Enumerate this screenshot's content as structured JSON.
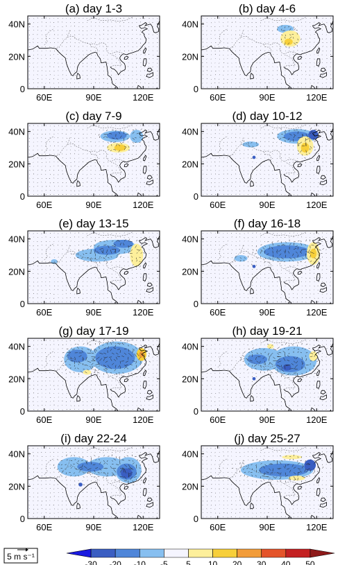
{
  "chart_data": {
    "type": "heatmap",
    "panels": [
      {
        "title": "(a) day 1-3",
        "blobs": []
      },
      {
        "title": "(b) day 4-6",
        "blobs": [
          {
            "lon": 101,
            "lat": 37,
            "rx": 5,
            "ry": 2.5,
            "v": -7
          },
          {
            "lon": 104,
            "lat": 31,
            "rx": 6,
            "ry": 5,
            "v": 9
          },
          {
            "lon": 103,
            "lat": 29,
            "rx": 2.5,
            "ry": 2,
            "v": 14
          }
        ]
      },
      {
        "title": "(c) day 7-9",
        "blobs": [
          {
            "lon": 103,
            "lat": 37,
            "rx": 9,
            "ry": 3.5,
            "v": -7
          },
          {
            "lon": 104,
            "lat": 37.5,
            "rx": 6,
            "ry": 2.5,
            "v": -15
          },
          {
            "lon": 116,
            "lat": 37,
            "rx": 4,
            "ry": 4,
            "v": -7
          },
          {
            "lon": 105,
            "lat": 30,
            "rx": 7,
            "ry": 3,
            "v": 8
          },
          {
            "lon": 106,
            "lat": 30,
            "rx": 3.5,
            "ry": 2,
            "v": 16
          }
        ]
      },
      {
        "title": "(d) day 10-12",
        "blobs": [
          {
            "lon": 108,
            "lat": 37,
            "rx": 12,
            "ry": 4.5,
            "v": -7
          },
          {
            "lon": 108,
            "lat": 37,
            "rx": 8,
            "ry": 3,
            "v": -15
          },
          {
            "lon": 118,
            "lat": 38,
            "rx": 3,
            "ry": 3,
            "v": -22
          },
          {
            "lon": 80,
            "lat": 32,
            "rx": 5,
            "ry": 1.8,
            "v": -7
          },
          {
            "lon": 113,
            "lat": 31,
            "rx": 5,
            "ry": 6,
            "v": 8
          },
          {
            "lon": 113,
            "lat": 30,
            "rx": 2.5,
            "ry": 3,
            "v": 16
          },
          {
            "lon": 82,
            "lat": 24,
            "rx": 1,
            "ry": 1,
            "v": -25
          }
        ]
      },
      {
        "title": "(e) day 13-15",
        "blobs": [
          {
            "lon": 92,
            "lat": 30,
            "rx": 13,
            "ry": 4,
            "v": -7
          },
          {
            "lon": 103,
            "lat": 35,
            "rx": 13,
            "ry": 4.5,
            "v": -8
          },
          {
            "lon": 98,
            "lat": 33,
            "rx": 8,
            "ry": 2.8,
            "v": -15
          },
          {
            "lon": 108,
            "lat": 37,
            "rx": 6,
            "ry": 2.5,
            "v": -15
          },
          {
            "lon": 116,
            "lat": 30,
            "rx": 4,
            "ry": 7,
            "v": 8
          },
          {
            "lon": 66,
            "lat": 26,
            "rx": 2,
            "ry": 1.5,
            "v": -7
          }
        ]
      },
      {
        "title": "(f) day 16-18",
        "blobs": [
          {
            "lon": 102,
            "lat": 32,
            "rx": 18,
            "ry": 6,
            "v": -7
          },
          {
            "lon": 102,
            "lat": 32,
            "rx": 14,
            "ry": 4,
            "v": -15
          },
          {
            "lon": 74,
            "lat": 28,
            "rx": 4,
            "ry": 2,
            "v": -7
          },
          {
            "lon": 118,
            "lat": 31,
            "rx": 4,
            "ry": 7,
            "v": 8
          },
          {
            "lon": 118,
            "lat": 31,
            "rx": 2,
            "ry": 3,
            "v": 15
          },
          {
            "lon": 82,
            "lat": 23,
            "rx": 1,
            "ry": 1,
            "v": -25
          }
        ]
      },
      {
        "title": "(g) day 17-19",
        "blobs": [
          {
            "lon": 82,
            "lat": 32,
            "rx": 10,
            "ry": 8,
            "v": -7
          },
          {
            "lon": 104,
            "lat": 33,
            "rx": 16,
            "ry": 10,
            "v": -8
          },
          {
            "lon": 103,
            "lat": 33,
            "rx": 12,
            "ry": 7,
            "v": -15
          },
          {
            "lon": 80,
            "lat": 34,
            "rx": 6,
            "ry": 4,
            "v": -15
          },
          {
            "lon": 119,
            "lat": 35,
            "rx": 3,
            "ry": 4,
            "v": 14
          },
          {
            "lon": 119,
            "lat": 35,
            "rx": 1.5,
            "ry": 2,
            "v": 25
          },
          {
            "lon": 86,
            "lat": 24,
            "rx": 2.5,
            "ry": 1.5,
            "v": 8
          }
        ]
      },
      {
        "title": "(h) day 19-21",
        "blobs": [
          {
            "lon": 88,
            "lat": 32,
            "rx": 12,
            "ry": 7,
            "v": -7
          },
          {
            "lon": 106,
            "lat": 31,
            "rx": 14,
            "ry": 9,
            "v": -8
          },
          {
            "lon": 104,
            "lat": 29,
            "rx": 9,
            "ry": 5,
            "v": -15
          },
          {
            "lon": 102,
            "lat": 27,
            "rx": 2.5,
            "ry": 2,
            "v": -24
          },
          {
            "lon": 84,
            "lat": 32,
            "rx": 6,
            "ry": 3,
            "v": -15
          },
          {
            "lon": 118,
            "lat": 34,
            "rx": 2.5,
            "ry": 3,
            "v": 8
          },
          {
            "lon": 92,
            "lat": 40,
            "rx": 2,
            "ry": 1.5,
            "v": 8
          },
          {
            "lon": 82,
            "lat": 20,
            "rx": 1,
            "ry": 1,
            "v": -25
          }
        ]
      },
      {
        "title": "(i) day 22-24",
        "blobs": [
          {
            "lon": 78,
            "lat": 32,
            "rx": 10,
            "ry": 6,
            "v": -7
          },
          {
            "lon": 98,
            "lat": 32,
            "rx": 12,
            "ry": 6,
            "v": -8
          },
          {
            "lon": 111,
            "lat": 30,
            "rx": 8,
            "ry": 8,
            "v": -8
          },
          {
            "lon": 88,
            "lat": 32,
            "rx": 8,
            "ry": 3,
            "v": -15
          },
          {
            "lon": 110,
            "lat": 29,
            "rx": 6,
            "ry": 5,
            "v": -15
          },
          {
            "lon": 110,
            "lat": 28,
            "rx": 3.5,
            "ry": 3,
            "v": -24
          },
          {
            "lon": 82,
            "lat": 21,
            "rx": 1.2,
            "ry": 1.2,
            "v": -25
          }
        ]
      },
      {
        "title": "(j) day 25-27",
        "blobs": [
          {
            "lon": 96,
            "lat": 30,
            "rx": 22,
            "ry": 6,
            "v": -7
          },
          {
            "lon": 100,
            "lat": 30,
            "rx": 15,
            "ry": 4,
            "v": -15
          },
          {
            "lon": 116,
            "lat": 33,
            "rx": 3.5,
            "ry": 3.5,
            "v": -24
          },
          {
            "lon": 108,
            "lat": 25,
            "rx": 5,
            "ry": 1.5,
            "v": 8
          },
          {
            "lon": 105,
            "lat": 38,
            "rx": 6,
            "ry": 1.3,
            "v": 8
          }
        ]
      }
    ],
    "x_ticks": [
      {
        "v": 60,
        "label": "60E"
      },
      {
        "v": 90,
        "label": "90E"
      },
      {
        "v": 120,
        "label": "120E"
      }
    ],
    "y_ticks": [
      {
        "v": 0,
        "label": "0"
      },
      {
        "v": 20,
        "label": "20N"
      },
      {
        "v": 40,
        "label": "40N"
      }
    ],
    "xlim": [
      50,
      130
    ],
    "ylim": [
      0,
      45
    ],
    "reference_vector_label": "5 m s⁻¹",
    "colorbar": {
      "ticks": [
        "-30",
        "-20",
        "-10",
        "-5",
        "5",
        "10",
        "20",
        "30",
        "40",
        "50"
      ],
      "colors": [
        "#1a1ae0",
        "#3a5ec2",
        "#4f86d9",
        "#87bff0",
        "#f5f5ff",
        "#fdef9b",
        "#f7cf3a",
        "#f29c39",
        "#e4542a",
        "#c42122",
        "#8e1a1a"
      ],
      "extend": "both"
    }
  }
}
